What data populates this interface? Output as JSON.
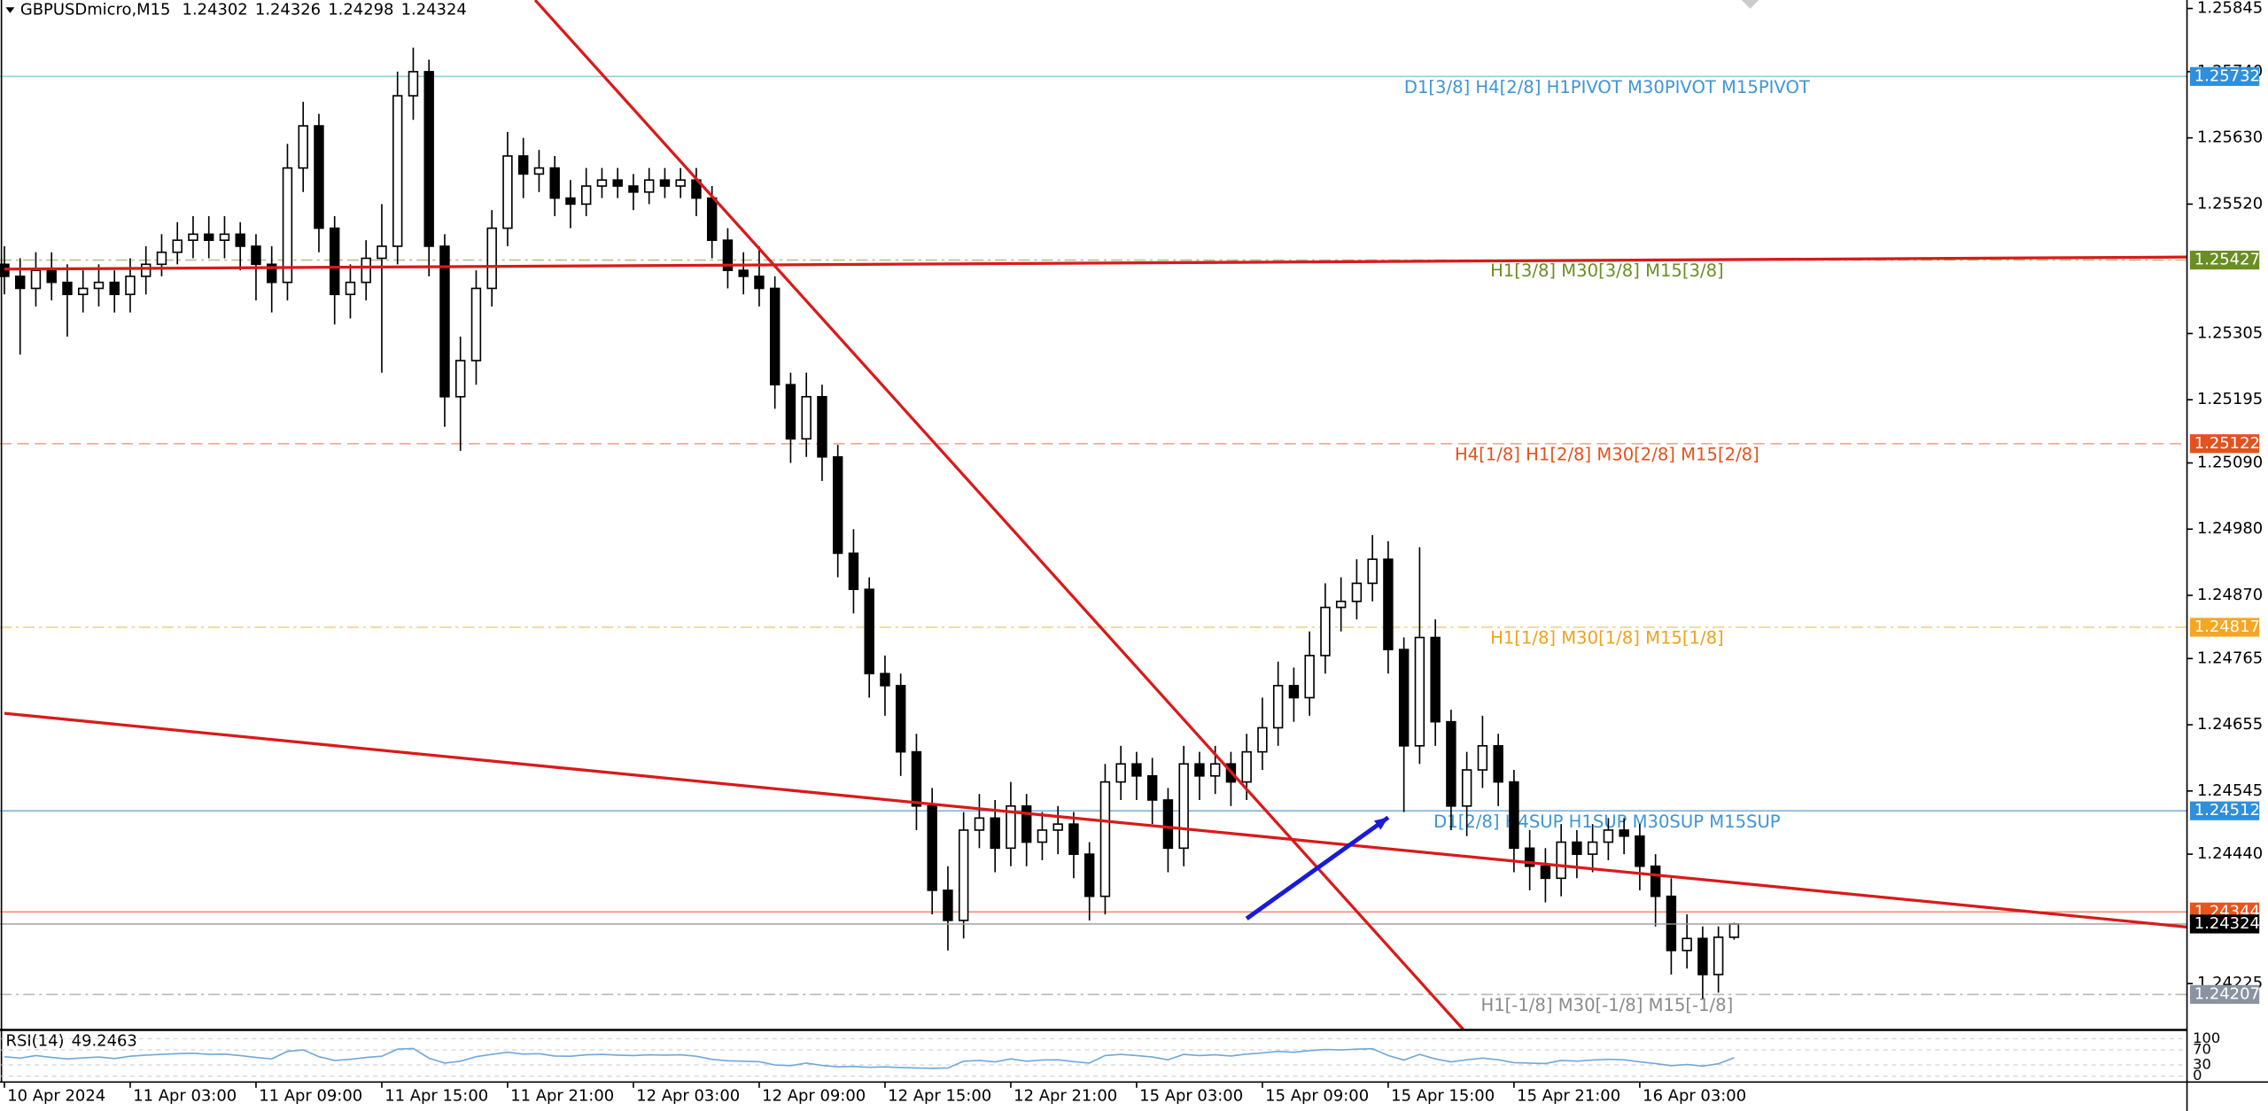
{
  "chart_data": {
    "type": "candlestick",
    "symbol": "GBPUSDmicro,M15",
    "ylim": [
      1.24148,
      1.25859
    ],
    "xlim": [
      -0.28,
      138.8
    ],
    "yticks": [
      {
        "value": 1.25845,
        "label": "1.25845"
      },
      {
        "value": 1.2574,
        "label": "1.25740"
      },
      {
        "value": 1.2563,
        "label": "1.25630"
      },
      {
        "value": 1.2552,
        "label": "1.25520"
      },
      {
        "value": 1.25305,
        "label": "1.25305"
      },
      {
        "value": 1.25195,
        "label": "1.25195"
      },
      {
        "value": 1.2509,
        "label": "1.25090"
      },
      {
        "value": 1.2498,
        "label": "1.24980"
      },
      {
        "value": 1.2487,
        "label": "1.24870"
      },
      {
        "value": 1.24765,
        "label": "1.24765"
      },
      {
        "value": 1.24655,
        "label": "1.24655"
      },
      {
        "value": 1.24545,
        "label": "1.24545"
      },
      {
        "value": 1.2444,
        "label": "1.24440"
      },
      {
        "value": 1.24225,
        "label": "1.24225"
      }
    ],
    "xticks": [
      {
        "value": 0,
        "label": "10 Apr 2024"
      },
      {
        "value": 8,
        "label": "11 Apr 03:00"
      },
      {
        "value": 16,
        "label": "11 Apr 09:00"
      },
      {
        "value": 24,
        "label": "11 Apr 15:00"
      },
      {
        "value": 32,
        "label": "11 Apr 21:00"
      },
      {
        "value": 40,
        "label": "12 Apr 03:00"
      },
      {
        "value": 48,
        "label": "12 Apr 09:00"
      },
      {
        "value": 56,
        "label": "12 Apr 15:00"
      },
      {
        "value": 64,
        "label": "12 Apr 21:00"
      },
      {
        "value": 72,
        "label": "15 Apr 03:00"
      },
      {
        "value": 80,
        "label": "15 Apr 09:00"
      },
      {
        "value": 88,
        "label": "15 Apr 15:00"
      },
      {
        "value": 96,
        "label": "15 Apr 21:00"
      },
      {
        "value": 104,
        "label": "16 Apr 03:00"
      }
    ],
    "up_color": "#ffffff",
    "down_color": "#000000",
    "open": [
      1.2542,
      1.254,
      1.2538,
      1.2541,
      1.2539,
      1.2537,
      1.2538,
      1.2539,
      1.2537,
      1.254,
      1.2542,
      1.2544,
      1.2546,
      1.2547,
      1.2546,
      1.2547,
      1.2545,
      1.2542,
      1.2539,
      1.2558,
      1.2565,
      1.2548,
      1.2537,
      1.2539,
      1.2543,
      1.2545,
      1.257,
      1.2574,
      1.2545,
      1.252,
      1.2526,
      1.2538,
      1.2548,
      1.256,
      1.2557,
      1.2558,
      1.2553,
      1.2552,
      1.2555,
      1.2556,
      1.2555,
      1.2554,
      1.2556,
      1.2555,
      1.2556,
      1.2553,
      1.2546,
      1.2541,
      1.254,
      1.2538,
      1.2522,
      1.2513,
      1.252,
      1.251,
      1.2494,
      1.2488,
      1.2474,
      1.2472,
      1.2461,
      1.2452,
      1.2438,
      1.2433,
      1.2448,
      1.245,
      1.2445,
      1.2452,
      1.2446,
      1.2448,
      1.2449,
      1.2444,
      1.2437,
      1.2456,
      1.2459,
      1.2457,
      1.2453,
      1.2445,
      1.2459,
      1.2457,
      1.2459,
      1.2456,
      1.2461,
      1.2465,
      1.2472,
      1.247,
      1.2477,
      1.2485,
      1.2486,
      1.2489,
      1.2493,
      1.2478,
      1.2462,
      1.248,
      1.2466,
      1.2452,
      1.2458,
      1.2462,
      1.2456,
      1.2445,
      1.2442,
      1.244,
      1.2446,
      1.2444,
      1.2446,
      1.2448,
      1.2447,
      1.2442,
      1.2437,
      1.2428,
      1.243,
      1.2424,
      1.24302
    ],
    "high": [
      1.2545,
      1.2543,
      1.2544,
      1.2544,
      1.2542,
      1.2541,
      1.2542,
      1.2541,
      1.2543,
      1.2545,
      1.2547,
      1.2549,
      1.255,
      1.255,
      1.255,
      1.2549,
      1.2547,
      1.2545,
      1.2562,
      1.2569,
      1.2567,
      1.255,
      1.2542,
      1.2546,
      1.2552,
      1.2574,
      1.2578,
      1.2576,
      1.2547,
      1.253,
      1.2541,
      1.2551,
      1.2564,
      1.2563,
      1.2561,
      1.256,
      1.2556,
      1.2558,
      1.2558,
      1.2558,
      1.2557,
      1.2558,
      1.2558,
      1.2558,
      1.2558,
      1.2555,
      1.2548,
      1.2544,
      1.2545,
      1.254,
      1.2524,
      1.2524,
      1.2522,
      1.2512,
      1.2498,
      1.249,
      1.2477,
      1.2474,
      1.2464,
      1.2455,
      1.2442,
      1.2451,
      1.2454,
      1.2453,
      1.2456,
      1.2454,
      1.2451,
      1.2452,
      1.2451,
      1.2446,
      1.2459,
      1.2462,
      1.2461,
      1.246,
      1.2455,
      1.2462,
      1.2461,
      1.2462,
      1.2461,
      1.2464,
      1.247,
      1.2476,
      1.2475,
      1.2481,
      1.2489,
      1.249,
      1.2493,
      1.2497,
      1.2496,
      1.248,
      1.2495,
      1.2483,
      1.2468,
      1.2461,
      1.2467,
      1.2464,
      1.2458,
      1.2448,
      1.2445,
      1.2449,
      1.2448,
      1.2449,
      1.245,
      1.245,
      1.2449,
      1.2444,
      1.244,
      1.2434,
      1.2432,
      1.2432,
      1.24326
    ],
    "low": [
      1.2537,
      1.2527,
      1.2535,
      1.2536,
      1.253,
      1.2534,
      1.2535,
      1.2534,
      1.2534,
      1.2537,
      1.254,
      1.2542,
      1.2543,
      1.2543,
      1.2543,
      1.2541,
      1.2536,
      1.2534,
      1.2536,
      1.2554,
      1.2544,
      1.2532,
      1.2533,
      1.2536,
      1.2524,
      1.2542,
      1.2566,
      1.254,
      1.2515,
      1.2511,
      1.2522,
      1.2535,
      1.2545,
      1.2553,
      1.2554,
      1.255,
      1.2548,
      1.255,
      1.2553,
      1.2553,
      1.2551,
      1.2552,
      1.2553,
      1.2553,
      1.255,
      1.2543,
      1.2538,
      1.2537,
      1.2535,
      1.2518,
      1.2509,
      1.251,
      1.2506,
      1.249,
      1.2484,
      1.247,
      1.2467,
      1.2457,
      1.2448,
      1.2434,
      1.2428,
      1.243,
      1.2445,
      1.2441,
      1.2442,
      1.2442,
      1.2443,
      1.2444,
      1.244,
      1.2433,
      1.2434,
      1.2453,
      1.2453,
      1.2449,
      1.2441,
      1.2442,
      1.2453,
      1.2454,
      1.2452,
      1.2453,
      1.2458,
      1.2462,
      1.2466,
      1.2467,
      1.2474,
      1.2481,
      1.2483,
      1.2486,
      1.2474,
      1.2451,
      1.2459,
      1.2462,
      1.2448,
      1.2447,
      1.2455,
      1.2452,
      1.2441,
      1.2438,
      1.2436,
      1.2437,
      1.244,
      1.2441,
      1.2443,
      1.2444,
      1.2438,
      1.2432,
      1.2424,
      1.2425,
      1.242,
      1.2421,
      1.24298
    ],
    "close": [
      1.254,
      1.2538,
      1.2541,
      1.2539,
      1.2537,
      1.2538,
      1.2539,
      1.2537,
      1.254,
      1.2542,
      1.2544,
      1.2546,
      1.2547,
      1.2546,
      1.2547,
      1.2545,
      1.2542,
      1.2539,
      1.2558,
      1.2565,
      1.2548,
      1.2537,
      1.2539,
      1.2543,
      1.2545,
      1.257,
      1.2574,
      1.2545,
      1.252,
      1.2526,
      1.2538,
      1.2548,
      1.256,
      1.2557,
      1.2558,
      1.2553,
      1.2552,
      1.2555,
      1.2556,
      1.2555,
      1.2554,
      1.2556,
      1.2555,
      1.2556,
      1.2553,
      1.2546,
      1.2541,
      1.254,
      1.2538,
      1.2522,
      1.2513,
      1.252,
      1.251,
      1.2494,
      1.2488,
      1.2474,
      1.2472,
      1.2461,
      1.2452,
      1.2438,
      1.2433,
      1.2448,
      1.245,
      1.2445,
      1.2452,
      1.2446,
      1.2448,
      1.2449,
      1.2444,
      1.2437,
      1.2456,
      1.2459,
      1.2457,
      1.2453,
      1.2445,
      1.2459,
      1.2457,
      1.2459,
      1.2456,
      1.2461,
      1.2465,
      1.2472,
      1.247,
      1.2477,
      1.2485,
      1.2486,
      1.2489,
      1.2493,
      1.2478,
      1.2462,
      1.248,
      1.2466,
      1.2452,
      1.2458,
      1.2462,
      1.2456,
      1.2445,
      1.2442,
      1.244,
      1.2446,
      1.2444,
      1.2446,
      1.2448,
      1.2447,
      1.2442,
      1.2437,
      1.2428,
      1.243,
      1.2424,
      1.24302,
      1.24324
    ],
    "last_price_color": "#000000",
    "levels": [
      {
        "value": 1.25732,
        "text": "D1[3/8] H4[2/8] H1PIVOT M30PIVOT M15PIVOT",
        "color": "#3d95d6",
        "line_color": "#8fd0d0",
        "style": "solid",
        "box_color": "#2f8fdc"
      },
      {
        "value": 1.25427,
        "text": "H1[3/8] M30[3/8] M15[3/8]",
        "color": "#6b8e23",
        "line_color": "#b5c48a",
        "style": "dashdot",
        "box_color": "#6b8e23"
      },
      {
        "value": 1.25122,
        "text": "H4[1/8] H1[2/8] M30[2/8] M15[2/8]",
        "color": "#e0531f",
        "line_color": "#f0a890",
        "style": "dashed",
        "box_color": "#e0531f"
      },
      {
        "value": 1.24817,
        "text": "H1[1/8] M30[1/8] M15[1/8]",
        "color": "#eea21c",
        "line_color": "#f3cf8c",
        "style": "dashdot",
        "box_color": "#f5a623"
      },
      {
        "value": 1.24512,
        "text": "D1[2/8] H4SUP H1SUP M30SUP M15SUP",
        "color": "#3d95d6",
        "line_color": "#7fb4e0",
        "style": "solid",
        "box_color": "#2f8fdc"
      },
      {
        "value": 1.24344,
        "color": "#e06040",
        "line_color": "#f08e78",
        "style": "solid",
        "box_color": "#e8541a"
      },
      {
        "value": 1.24207,
        "text": "H1[-1/8] M30[-1/8] M15[-1/8]",
        "color": "#8a8a8a",
        "line_color": "#b8b8b8",
        "style": "dashdot",
        "box_color": "#8a94a0"
      }
    ],
    "trendlines": [
      {
        "x": [
          33.75,
          92.8
        ],
        "y": [
          1.25859,
          1.24148
        ],
        "color": "#d91a1a",
        "width": 2
      },
      {
        "x": [
          0,
          138.8
        ],
        "y": [
          1.24674,
          1.24319
        ],
        "color": "#d91a1a",
        "width": 2
      },
      {
        "x": [
          0,
          138.8
        ],
        "y": [
          1.25412,
          1.25432
        ],
        "color": "#d91a1a",
        "width": 2
      },
      {
        "x": [
          79.0,
          88.0
        ],
        "y": [
          1.24333,
          1.24501
        ],
        "color": "#1a1ad9",
        "width": 3,
        "arrow": true
      }
    ],
    "rsi_label": "RSI(14)",
    "rsi_ylim": [
      0,
      100
    ],
    "rsi_ticks": [
      100,
      70,
      30,
      0
    ],
    "rsi_color": "#6fa8dc",
    "rsi": [
      52,
      48,
      55,
      50,
      46,
      49,
      51,
      47,
      53,
      56,
      58,
      60,
      61,
      58,
      59,
      55,
      50,
      46,
      66,
      70,
      52,
      42,
      45,
      50,
      53,
      72,
      74,
      48,
      35,
      40,
      52,
      58,
      64,
      59,
      60,
      54,
      53,
      57,
      58,
      56,
      55,
      57,
      56,
      57,
      53,
      45,
      41,
      40,
      39,
      30,
      28,
      35,
      29,
      25,
      26,
      24,
      25,
      23,
      22,
      21,
      22,
      40,
      42,
      38,
      46,
      40,
      43,
      44,
      39,
      35,
      55,
      58,
      55,
      51,
      44,
      58,
      55,
      57,
      54,
      59,
      62,
      66,
      64,
      68,
      71,
      70,
      72,
      73,
      55,
      43,
      58,
      46,
      38,
      44,
      48,
      44,
      36,
      35,
      34,
      42,
      40,
      43,
      45,
      44,
      38,
      34,
      28,
      31,
      27,
      33,
      49.2463
    ]
  }
}
